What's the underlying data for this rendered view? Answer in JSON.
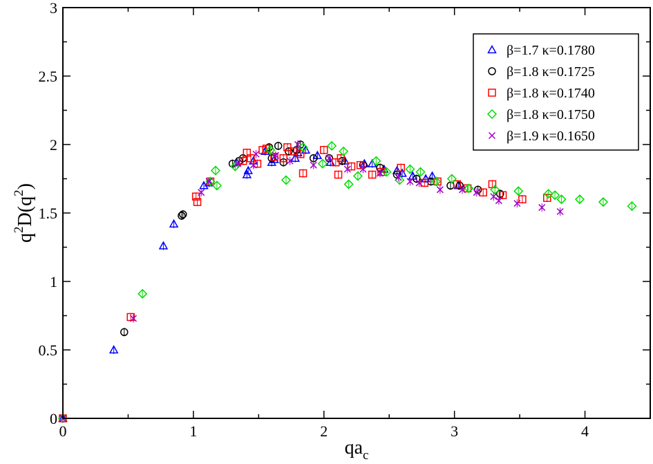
{
  "chart_data": {
    "type": "scatter",
    "title": "",
    "xlabel": {
      "main": "qa",
      "sub": "c"
    },
    "ylabel": {
      "p1": "q",
      "s1": "2",
      "p2": "D(q",
      "s2": "2",
      "p3": ")"
    },
    "xlim": [
      0,
      4.5
    ],
    "ylim": [
      0,
      3
    ],
    "x_major_ticks": [
      0,
      1,
      2,
      3,
      4
    ],
    "x_tick_labels": [
      "0",
      "1",
      "2",
      "3",
      "4"
    ],
    "y_major_ticks": [
      0,
      0.5,
      1,
      1.5,
      2,
      2.5,
      3
    ],
    "y_tick_labels": [
      "0",
      "0.5",
      "1",
      "1.5",
      "2",
      "2.5",
      "3"
    ],
    "grid": false,
    "legend_position": "top-right",
    "series": [
      {
        "name": "β=1.7 κ=0.1780",
        "marker": "triangle",
        "color": "#0000ff",
        "points": [
          [
            0.0,
            0.0
          ],
          [
            0.39,
            0.5
          ],
          [
            0.77,
            1.26
          ],
          [
            0.85,
            1.42
          ],
          [
            1.08,
            1.7
          ],
          [
            1.12,
            1.72
          ],
          [
            1.33,
            1.87
          ],
          [
            1.41,
            1.78
          ],
          [
            1.42,
            1.81
          ],
          [
            1.46,
            1.88
          ],
          [
            1.55,
            1.95
          ],
          [
            1.6,
            1.87
          ],
          [
            1.62,
            1.89
          ],
          [
            1.78,
            1.9
          ],
          [
            1.8,
            1.94
          ],
          [
            1.86,
            1.96
          ],
          [
            1.95,
            1.92
          ],
          [
            2.05,
            1.87
          ],
          [
            2.16,
            1.88
          ],
          [
            2.31,
            1.86
          ],
          [
            2.37,
            1.86
          ],
          [
            2.46,
            1.82
          ],
          [
            2.56,
            1.81
          ],
          [
            2.6,
            1.79
          ],
          [
            2.68,
            1.77
          ],
          [
            2.78,
            1.75
          ],
          [
            2.83,
            1.77
          ],
          [
            3.03,
            1.7
          ]
        ]
      },
      {
        "name": "β=1.8 κ=0.1725",
        "marker": "circle",
        "color": "#000000",
        "points": [
          [
            0.0,
            0.0
          ],
          [
            0.47,
            0.63
          ],
          [
            0.91,
            1.48
          ],
          [
            0.92,
            1.49
          ],
          [
            1.3,
            1.86
          ],
          [
            1.35,
            1.88
          ],
          [
            1.38,
            1.9
          ],
          [
            1.58,
            1.98
          ],
          [
            1.6,
            1.9
          ],
          [
            1.65,
            1.99
          ],
          [
            1.69,
            1.87
          ],
          [
            1.73,
            1.95
          ],
          [
            1.79,
            1.96
          ],
          [
            1.82,
            2.0
          ],
          [
            1.92,
            1.9
          ],
          [
            2.04,
            1.9
          ],
          [
            2.14,
            1.88
          ],
          [
            2.3,
            1.85
          ],
          [
            2.43,
            1.83
          ],
          [
            2.56,
            1.78
          ],
          [
            2.71,
            1.75
          ],
          [
            2.82,
            1.73
          ],
          [
            2.97,
            1.7
          ],
          [
            3.04,
            1.7
          ],
          [
            3.18,
            1.67
          ],
          [
            3.35,
            1.64
          ]
        ]
      },
      {
        "name": "β=1.8 κ=0.1740",
        "marker": "square",
        "color": "#ff0000",
        "points": [
          [
            0.0,
            0.0
          ],
          [
            0.52,
            0.74
          ],
          [
            1.02,
            1.62
          ],
          [
            1.03,
            1.58
          ],
          [
            1.13,
            1.73
          ],
          [
            1.38,
            1.88
          ],
          [
            1.41,
            1.94
          ],
          [
            1.44,
            1.9
          ],
          [
            1.49,
            1.86
          ],
          [
            1.53,
            1.96
          ],
          [
            1.56,
            1.97
          ],
          [
            1.62,
            1.91
          ],
          [
            1.69,
            1.9
          ],
          [
            1.72,
            1.98
          ],
          [
            1.77,
            1.95
          ],
          [
            1.82,
            1.93
          ],
          [
            1.84,
            1.79
          ],
          [
            2.0,
            1.96
          ],
          [
            2.09,
            1.87
          ],
          [
            2.11,
            1.78
          ],
          [
            2.13,
            1.9
          ],
          [
            2.21,
            1.84
          ],
          [
            2.28,
            1.85
          ],
          [
            2.37,
            1.78
          ],
          [
            2.44,
            1.8
          ],
          [
            2.59,
            1.83
          ],
          [
            2.77,
            1.72
          ],
          [
            2.87,
            1.73
          ],
          [
            3.02,
            1.71
          ],
          [
            3.1,
            1.68
          ],
          [
            3.22,
            1.65
          ],
          [
            3.29,
            1.71
          ],
          [
            3.37,
            1.63
          ],
          [
            3.52,
            1.6
          ],
          [
            3.71,
            1.61
          ]
        ]
      },
      {
        "name": "β=1.8 κ=0.1750",
        "marker": "diamond",
        "color": "#00dd00",
        "points": [
          [
            0.0,
            0.0
          ],
          [
            0.61,
            0.91
          ],
          [
            1.13,
            1.73
          ],
          [
            1.17,
            1.81
          ],
          [
            1.18,
            1.7
          ],
          [
            1.32,
            1.84
          ],
          [
            1.59,
            1.96
          ],
          [
            1.71,
            1.74
          ],
          [
            1.84,
            1.98
          ],
          [
            1.99,
            1.86
          ],
          [
            2.06,
            1.99
          ],
          [
            2.15,
            1.95
          ],
          [
            2.19,
            1.71
          ],
          [
            2.26,
            1.77
          ],
          [
            2.4,
            1.88
          ],
          [
            2.48,
            1.8
          ],
          [
            2.58,
            1.74
          ],
          [
            2.66,
            1.82
          ],
          [
            2.74,
            1.8
          ],
          [
            2.86,
            1.73
          ],
          [
            2.98,
            1.75
          ],
          [
            3.11,
            1.68
          ],
          [
            3.31,
            1.67
          ],
          [
            3.49,
            1.66
          ],
          [
            3.72,
            1.64
          ],
          [
            3.77,
            1.63
          ],
          [
            3.82,
            1.6
          ],
          [
            3.96,
            1.6
          ],
          [
            4.14,
            1.58
          ],
          [
            4.36,
            1.55
          ]
        ]
      },
      {
        "name": "β=1.9 κ=0.1650",
        "marker": "x",
        "color": "#a000c8",
        "points": [
          [
            0.0,
            0.0
          ],
          [
            0.54,
            0.73
          ],
          [
            1.06,
            1.65
          ],
          [
            1.12,
            1.73
          ],
          [
            1.34,
            1.86
          ],
          [
            1.46,
            1.85
          ],
          [
            1.48,
            1.93
          ],
          [
            1.63,
            1.92
          ],
          [
            1.74,
            1.88
          ],
          [
            1.8,
            2.0
          ],
          [
            1.92,
            1.85
          ],
          [
            2.04,
            1.9
          ],
          [
            2.18,
            1.82
          ],
          [
            2.3,
            1.82
          ],
          [
            2.43,
            1.79
          ],
          [
            2.57,
            1.76
          ],
          [
            2.66,
            1.73
          ],
          [
            2.73,
            1.72
          ],
          [
            2.89,
            1.67
          ],
          [
            3.06,
            1.67
          ],
          [
            3.17,
            1.65
          ],
          [
            3.3,
            1.62
          ],
          [
            3.34,
            1.59
          ],
          [
            3.48,
            1.57
          ],
          [
            3.67,
            1.54
          ],
          [
            3.81,
            1.51
          ]
        ]
      }
    ]
  }
}
